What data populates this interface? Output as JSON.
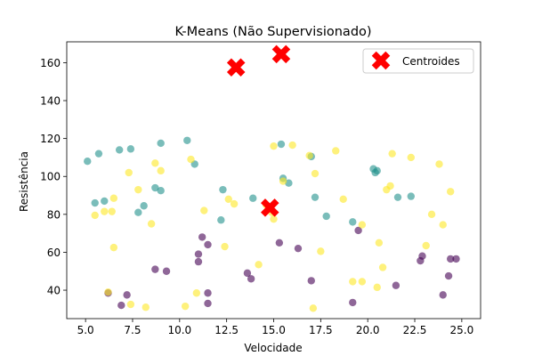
{
  "chart_data": {
    "type": "scatter",
    "title": "K-Means (Não Supervisionado)",
    "xlabel": "Velocidade",
    "ylabel": "Resistência",
    "xlim": [
      4.0,
      26.0
    ],
    "ylim": [
      25,
      171
    ],
    "xticks": [
      5.0,
      7.5,
      10.0,
      12.5,
      15.0,
      17.5,
      20.0,
      22.5,
      25.0
    ],
    "yticks": [
      40,
      60,
      80,
      100,
      120,
      140,
      160
    ],
    "grid": false,
    "legend": {
      "placement": "top-right",
      "entries": [
        "Centroides"
      ]
    },
    "colors": {
      "cluster_low": "#440154",
      "cluster_mid": "#21918c",
      "cluster_high": "#fde725",
      "centroid": "#ff0000"
    },
    "point_alpha": 0.6,
    "series": [
      {
        "name": "",
        "color_key": "cluster_low",
        "points": [
          [
            6.2,
            38.5
          ],
          [
            6.9,
            32
          ],
          [
            7.2,
            37.5
          ],
          [
            8.7,
            51
          ],
          [
            9.3,
            50
          ],
          [
            11.0,
            59
          ],
          [
            11.0,
            55
          ],
          [
            11.2,
            68
          ],
          [
            11.5,
            64
          ],
          [
            11.5,
            38.5
          ],
          [
            11.5,
            33
          ],
          [
            13.6,
            49
          ],
          [
            13.8,
            46
          ],
          [
            15.3,
            65
          ],
          [
            16.3,
            62
          ],
          [
            17.0,
            45
          ],
          [
            19.2,
            33.5
          ],
          [
            19.5,
            71.5
          ],
          [
            21.5,
            42.5
          ],
          [
            22.8,
            55.5
          ],
          [
            22.9,
            58
          ],
          [
            24.0,
            37.5
          ],
          [
            24.3,
            47.5
          ],
          [
            24.4,
            56.5
          ],
          [
            24.7,
            56.5
          ]
        ]
      },
      {
        "name": "",
        "color_key": "cluster_mid",
        "points": [
          [
            5.1,
            108
          ],
          [
            5.5,
            86
          ],
          [
            5.7,
            112
          ],
          [
            6.0,
            87
          ],
          [
            6.8,
            114
          ],
          [
            7.4,
            114.5
          ],
          [
            7.8,
            81
          ],
          [
            8.1,
            84.5
          ],
          [
            8.7,
            94
          ],
          [
            9.0,
            92.5
          ],
          [
            9.0,
            117.5
          ],
          [
            10.4,
            119
          ],
          [
            10.8,
            106.5
          ],
          [
            12.2,
            77
          ],
          [
            12.3,
            93
          ],
          [
            13.9,
            88.5
          ],
          [
            15.4,
            117
          ],
          [
            15.5,
            99
          ],
          [
            15.8,
            96.5
          ],
          [
            17.0,
            110.5
          ],
          [
            17.2,
            89
          ],
          [
            17.8,
            79
          ],
          [
            19.2,
            76
          ],
          [
            20.3,
            104
          ],
          [
            20.4,
            102
          ],
          [
            20.5,
            103
          ],
          [
            21.6,
            89
          ],
          [
            22.3,
            89.5
          ]
        ]
      },
      {
        "name": "",
        "color_key": "cluster_high",
        "points": [
          [
            5.5,
            79.5
          ],
          [
            6.0,
            81.5
          ],
          [
            6.2,
            39
          ],
          [
            6.4,
            81.5
          ],
          [
            6.5,
            88.5
          ],
          [
            6.5,
            62.5
          ],
          [
            7.3,
            102
          ],
          [
            7.4,
            32.5
          ],
          [
            7.8,
            93
          ],
          [
            8.2,
            31
          ],
          [
            8.5,
            75
          ],
          [
            8.7,
            107
          ],
          [
            9.0,
            103
          ],
          [
            10.3,
            31.5
          ],
          [
            10.6,
            109
          ],
          [
            10.9,
            38.5
          ],
          [
            11.3,
            82
          ],
          [
            12.4,
            63
          ],
          [
            12.6,
            88
          ],
          [
            12.9,
            85.5
          ],
          [
            14.2,
            53.5
          ],
          [
            14.6,
            85
          ],
          [
            14.9,
            81
          ],
          [
            15.0,
            77.5
          ],
          [
            15.0,
            116
          ],
          [
            15.5,
            97.5
          ],
          [
            16.0,
            116.5
          ],
          [
            16.9,
            111
          ],
          [
            17.1,
            30.5
          ],
          [
            17.2,
            101.5
          ],
          [
            17.5,
            60.5
          ],
          [
            18.3,
            113.5
          ],
          [
            18.7,
            88
          ],
          [
            19.2,
            44.5
          ],
          [
            19.7,
            74.5
          ],
          [
            19.7,
            44.5
          ],
          [
            20.5,
            41.5
          ],
          [
            20.6,
            65
          ],
          [
            20.8,
            52
          ],
          [
            21.0,
            93
          ],
          [
            21.2,
            95
          ],
          [
            21.3,
            112
          ],
          [
            22.3,
            110
          ],
          [
            23.1,
            63.5
          ],
          [
            23.4,
            80
          ],
          [
            23.8,
            106.5
          ],
          [
            24.0,
            74.5
          ],
          [
            24.4,
            92
          ]
        ]
      }
    ],
    "centroids": {
      "name": "Centroides",
      "points": [
        [
          13.0,
          157.5
        ],
        [
          15.4,
          164.5
        ],
        [
          14.8,
          83.5
        ]
      ]
    }
  }
}
